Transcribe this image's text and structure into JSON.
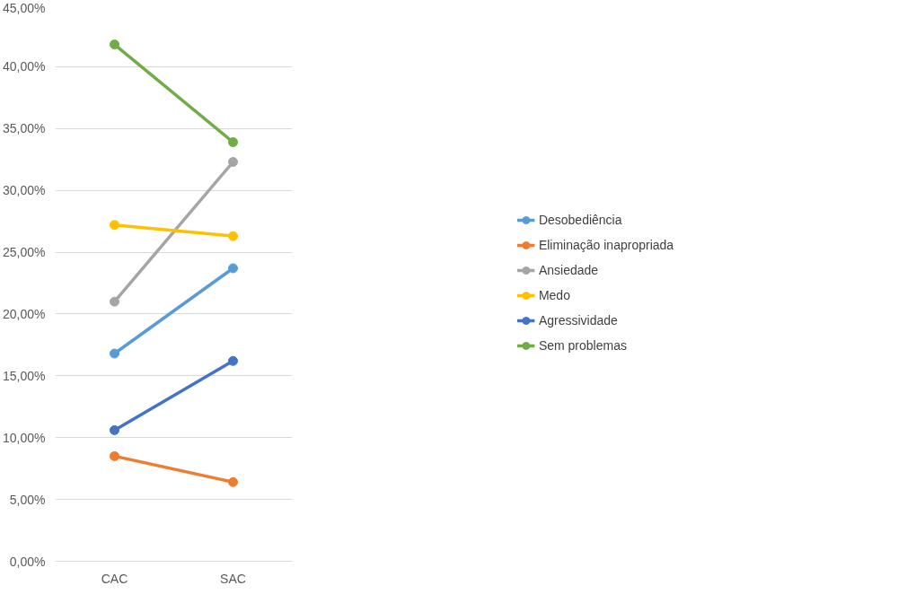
{
  "chart_data": {
    "type": "line",
    "categories": [
      "CAC",
      "SAC"
    ],
    "series": [
      {
        "name": "Desobediência",
        "color": "#5b9bd5",
        "values": [
          16.8,
          23.7
        ]
      },
      {
        "name": "Eliminação inapropriada",
        "color": "#ed7d31",
        "values": [
          8.5,
          6.4
        ]
      },
      {
        "name": "Ansiedade",
        "color": "#a5a5a5",
        "values": [
          21.0,
          32.3
        ]
      },
      {
        "name": "Medo",
        "color": "#ffc000",
        "values": [
          27.2,
          26.3
        ]
      },
      {
        "name": "Agressividade",
        "color": "#4472c4",
        "values": [
          10.6,
          16.2
        ]
      },
      {
        "name": "Sem problemas",
        "color": "#70ad47",
        "values": [
          41.8,
          33.9
        ]
      }
    ],
    "ylim": [
      0,
      45
    ],
    "yticks": [
      {
        "value": 0,
        "label": "0,00%"
      },
      {
        "value": 5,
        "label": "5,00%"
      },
      {
        "value": 10,
        "label": "10,00%"
      },
      {
        "value": 15,
        "label": "15,00%"
      },
      {
        "value": 20,
        "label": "20,00%"
      },
      {
        "value": 25,
        "label": "25,00%"
      },
      {
        "value": 30,
        "label": "30,00%"
      },
      {
        "value": 35,
        "label": "35,00%"
      },
      {
        "value": 40,
        "label": "40,00%"
      },
      {
        "value": 45,
        "label": "45,00%"
      }
    ],
    "grid": "y",
    "legend": "right",
    "marker": "circle",
    "line_style": "solid"
  }
}
